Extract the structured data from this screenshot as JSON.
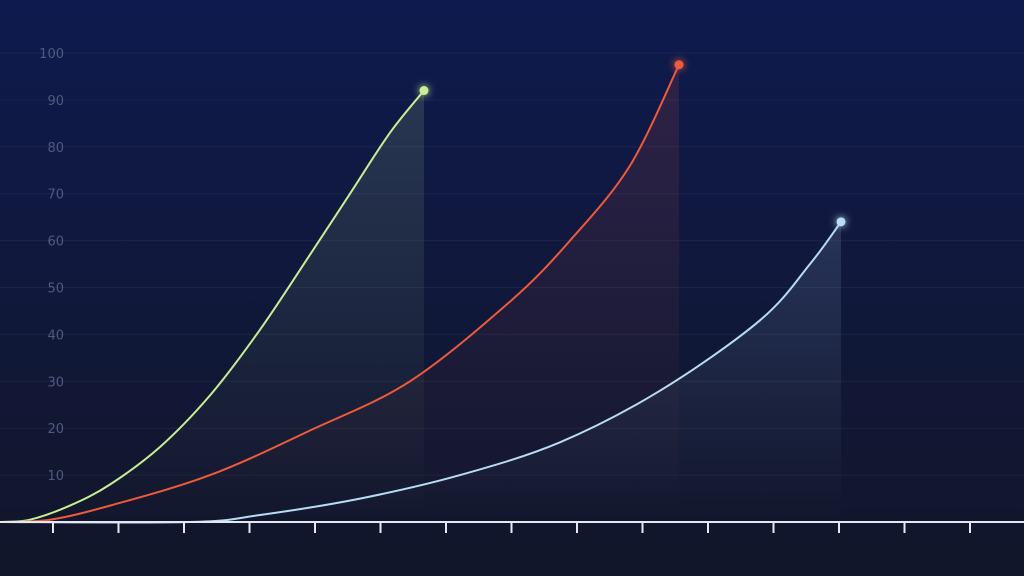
{
  "chart_data": {
    "type": "line",
    "title": "",
    "xlabel": "",
    "ylabel": "",
    "ylim": [
      0,
      100
    ],
    "yticks": [
      10,
      20,
      30,
      40,
      50,
      60,
      70,
      80,
      90,
      100
    ],
    "xticks_count": 15,
    "grid": true,
    "legend": "none",
    "background": {
      "top": "#0e1a4e",
      "bottom": "#121629"
    },
    "axis_color": "#e6e8f0",
    "series": [
      {
        "color": "#c8ee94",
        "points": [
          [
            0,
            0
          ],
          [
            20,
            0.5
          ],
          [
            60,
            3.5
          ],
          [
            100,
            8
          ],
          [
            150,
            16
          ],
          [
            200,
            27
          ],
          [
            250,
            41
          ],
          [
            300,
            57
          ],
          [
            340,
            70
          ],
          [
            380,
            83
          ],
          [
            414,
            92
          ]
        ]
      },
      {
        "color": "#ee5a3b",
        "points": [
          [
            0,
            0
          ],
          [
            40,
            0.5
          ],
          [
            100,
            3.5
          ],
          [
            200,
            10
          ],
          [
            300,
            19.5
          ],
          [
            400,
            30
          ],
          [
            500,
            47
          ],
          [
            560,
            60
          ],
          [
            620,
            76
          ],
          [
            669,
            97.5
          ]
        ]
      },
      {
        "color": "#b8dcf2",
        "points": [
          [
            0,
            0
          ],
          [
            180,
            0
          ],
          [
            250,
            1.5
          ],
          [
            350,
            5
          ],
          [
            450,
            10
          ],
          [
            550,
            17
          ],
          [
            650,
            28
          ],
          [
            750,
            43
          ],
          [
            800,
            55
          ],
          [
            831,
            64
          ]
        ]
      }
    ]
  }
}
